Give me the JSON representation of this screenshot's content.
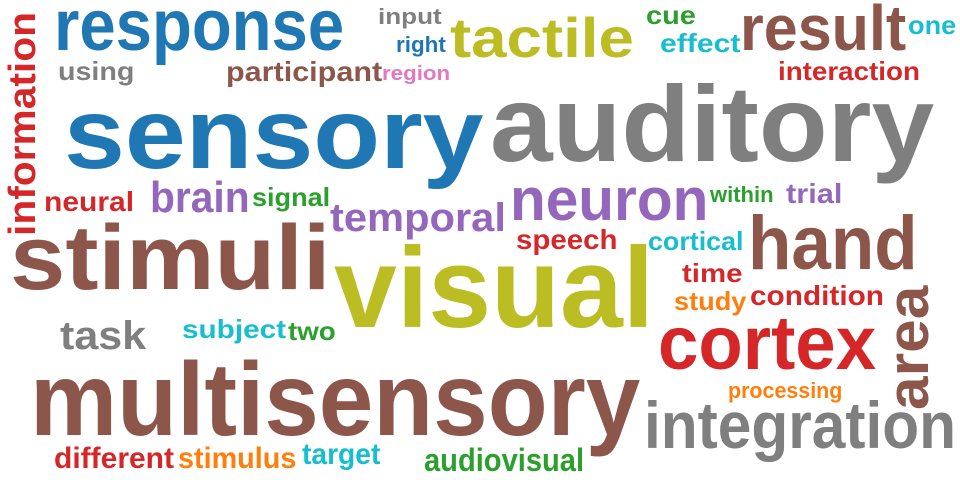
{
  "words": {
    "response": {
      "text": "response",
      "color": "#1f77b4"
    },
    "sensory": {
      "text": "sensory",
      "color": "#1f77b4"
    },
    "auditory": {
      "text": "auditory",
      "color": "#7f7f7f"
    },
    "tactile": {
      "text": "tactile",
      "color": "#bcbd22"
    },
    "result": {
      "text": "result",
      "color": "#8c564b"
    },
    "input": {
      "text": "input",
      "color": "#7f7f7f"
    },
    "right": {
      "text": "right",
      "color": "#1f77b4"
    },
    "cue": {
      "text": "cue",
      "color": "#2ca02c"
    },
    "effect": {
      "text": "effect",
      "color": "#17becf"
    },
    "one": {
      "text": "one",
      "color": "#17becf"
    },
    "using": {
      "text": "using",
      "color": "#7f7f7f"
    },
    "participant": {
      "text": "participant",
      "color": "#8c564b"
    },
    "region": {
      "text": "region",
      "color": "#e377c2"
    },
    "interaction": {
      "text": "interaction",
      "color": "#d62728"
    },
    "information": {
      "text": "information",
      "color": "#d62728"
    },
    "neural": {
      "text": "neural",
      "color": "#d62728"
    },
    "brain": {
      "text": "brain",
      "color": "#9467bd"
    },
    "signal": {
      "text": "signal",
      "color": "#2ca02c"
    },
    "neuron": {
      "text": "neuron",
      "color": "#9467bd"
    },
    "within": {
      "text": "within",
      "color": "#2ca02c"
    },
    "trial": {
      "text": "trial",
      "color": "#9467bd"
    },
    "temporal": {
      "text": "temporal",
      "color": "#9467bd"
    },
    "speech": {
      "text": "speech",
      "color": "#d62728"
    },
    "cortical": {
      "text": "cortical",
      "color": "#17becf"
    },
    "hand": {
      "text": "hand",
      "color": "#8c564b"
    },
    "stimuli": {
      "text": "stimuli",
      "color": "#8c564b"
    },
    "visual": {
      "text": "visual",
      "color": "#bcbd22"
    },
    "time": {
      "text": "time",
      "color": "#d62728"
    },
    "study": {
      "text": "study",
      "color": "#ff7f0e"
    },
    "condition": {
      "text": "condition",
      "color": "#d62728"
    },
    "area": {
      "text": "area",
      "color": "#8c564b"
    },
    "task": {
      "text": "task",
      "color": "#7f7f7f"
    },
    "subject": {
      "text": "subject",
      "color": "#17becf"
    },
    "two": {
      "text": "two",
      "color": "#2ca02c"
    },
    "cortex": {
      "text": "cortex",
      "color": "#d62728"
    },
    "multisensory": {
      "text": "multisensory",
      "color": "#8c564b"
    },
    "processing": {
      "text": "processing",
      "color": "#ff7f0e"
    },
    "integration": {
      "text": "integration",
      "color": "#7f7f7f"
    },
    "different": {
      "text": "different",
      "color": "#d62728"
    },
    "stimulus": {
      "text": "stimulus",
      "color": "#ff7f0e"
    },
    "target": {
      "text": "target",
      "color": "#17becf"
    },
    "audiovisual": {
      "text": "audiovisual",
      "color": "#2ca02c"
    }
  }
}
